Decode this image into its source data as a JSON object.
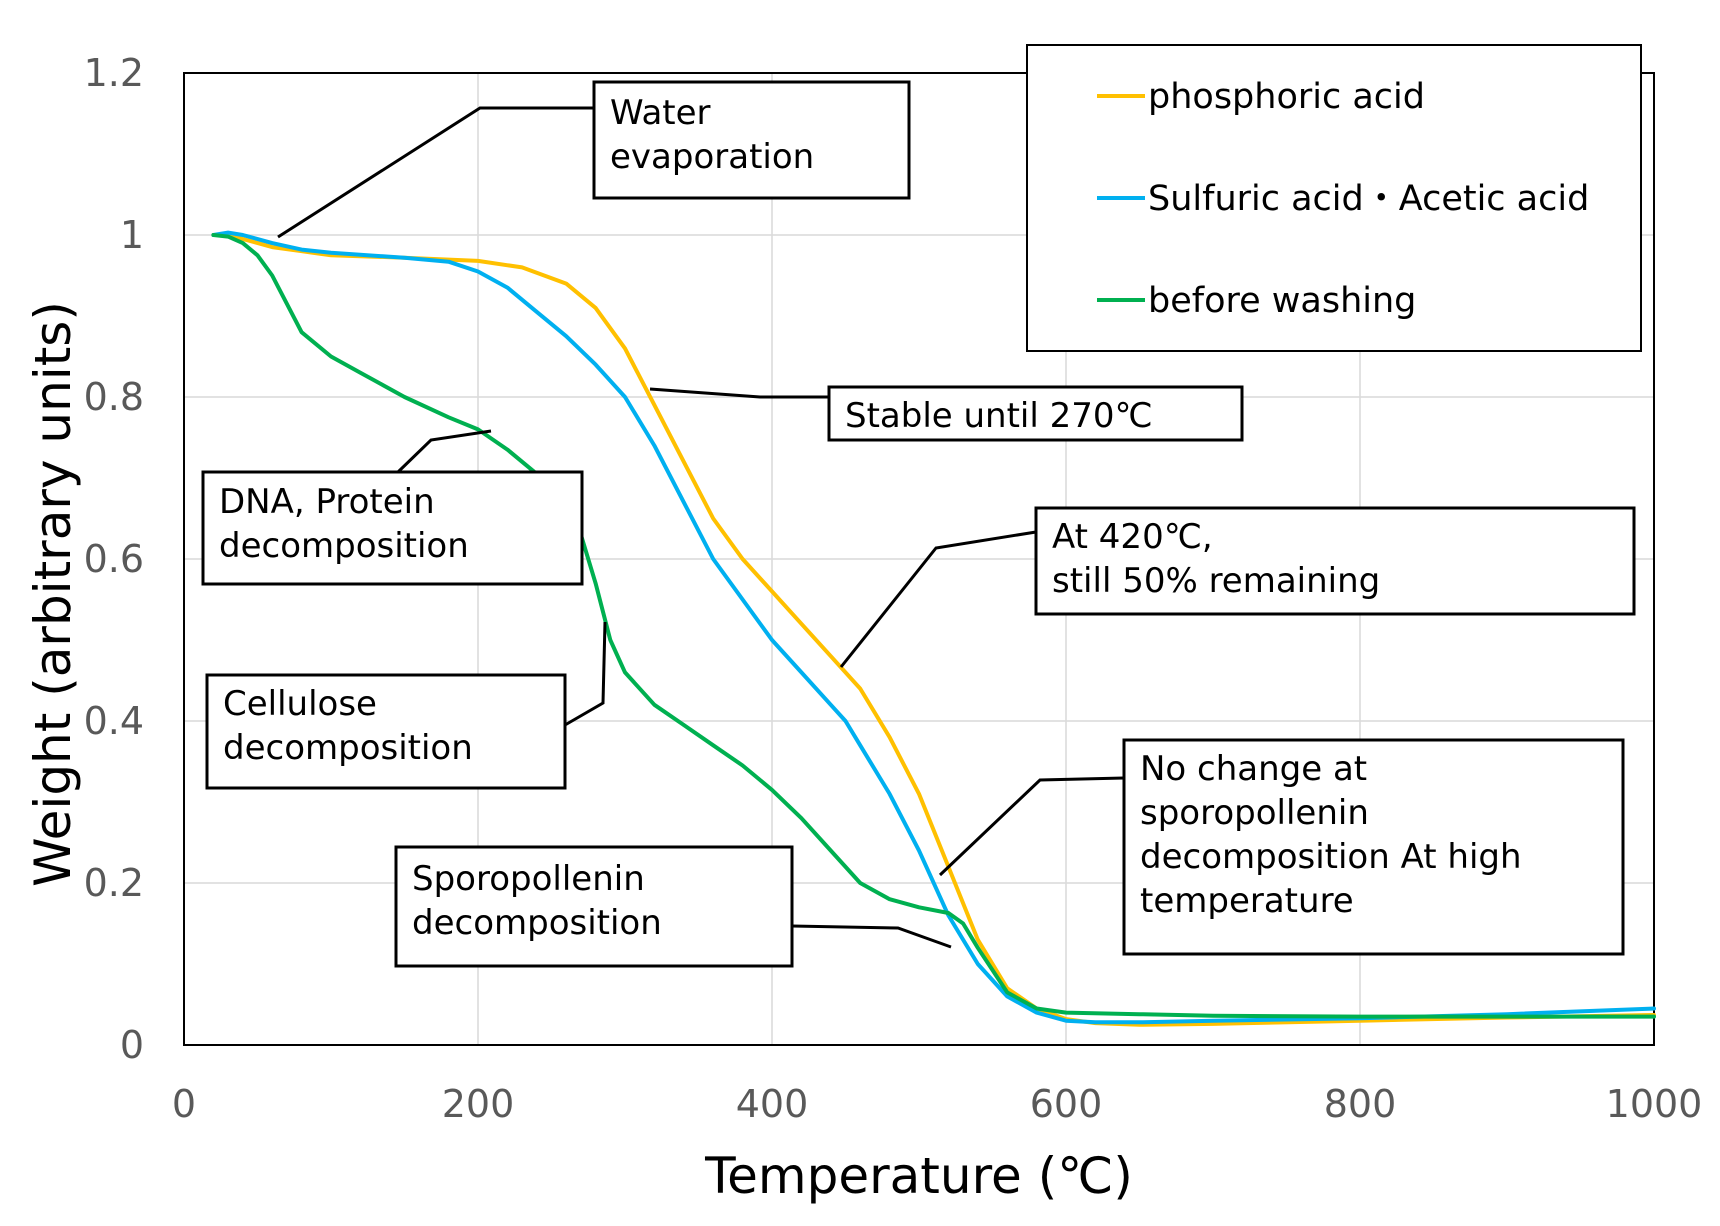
{
  "chart_data": {
    "type": "line",
    "title": "",
    "xlabel": "Temperature (℃)",
    "ylabel": "Weight (arbitrary units)",
    "xlim": [
      0,
      1000
    ],
    "ylim": [
      0,
      1.2
    ],
    "xticks": [
      "0",
      "200",
      "400",
      "600",
      "800",
      "1000"
    ],
    "yticks": [
      "0",
      "0.2",
      "0.4",
      "0.6",
      "0.8",
      "1",
      "1.2"
    ],
    "grid": true,
    "legend_position": "top-right",
    "series": [
      {
        "name": "phosphoric acid",
        "color": "#FFC000",
        "x": [
          20,
          30,
          40,
          60,
          80,
          100,
          150,
          200,
          230,
          260,
          280,
          300,
          320,
          340,
          360,
          380,
          400,
          420,
          440,
          460,
          480,
          500,
          520,
          540,
          560,
          580,
          600,
          620,
          650,
          700,
          800,
          900,
          1000
        ],
        "y": [
          1.0,
          1.0,
          0.995,
          0.985,
          0.98,
          0.975,
          0.972,
          0.968,
          0.96,
          0.94,
          0.91,
          0.86,
          0.79,
          0.72,
          0.65,
          0.6,
          0.56,
          0.52,
          0.48,
          0.44,
          0.38,
          0.31,
          0.22,
          0.13,
          0.07,
          0.045,
          0.032,
          0.027,
          0.025,
          0.026,
          0.03,
          0.034,
          0.037
        ]
      },
      {
        "name": "Sulfuric acid・Acetic acid",
        "color": "#00B0F0",
        "x": [
          20,
          30,
          40,
          60,
          80,
          100,
          150,
          180,
          200,
          220,
          240,
          260,
          280,
          300,
          320,
          340,
          360,
          380,
          400,
          420,
          440,
          450,
          460,
          480,
          500,
          520,
          540,
          560,
          580,
          600,
          620,
          650,
          700,
          800,
          900,
          1000
        ],
        "y": [
          1.0,
          1.003,
          1.0,
          0.99,
          0.982,
          0.978,
          0.972,
          0.967,
          0.955,
          0.935,
          0.905,
          0.875,
          0.84,
          0.8,
          0.74,
          0.67,
          0.6,
          0.55,
          0.5,
          0.46,
          0.42,
          0.4,
          0.37,
          0.31,
          0.24,
          0.16,
          0.1,
          0.06,
          0.04,
          0.03,
          0.028,
          0.028,
          0.03,
          0.033,
          0.038,
          0.045
        ]
      },
      {
        "name": "before washing",
        "color": "#00B050",
        "x": [
          20,
          30,
          40,
          50,
          60,
          80,
          100,
          120,
          150,
          180,
          200,
          220,
          240,
          250,
          260,
          270,
          280,
          290,
          300,
          320,
          340,
          360,
          380,
          400,
          420,
          440,
          460,
          480,
          500,
          520,
          530,
          540,
          560,
          580,
          600,
          650,
          700,
          800,
          900,
          1000
        ],
        "y": [
          1.0,
          0.998,
          0.99,
          0.975,
          0.95,
          0.88,
          0.85,
          0.83,
          0.8,
          0.775,
          0.76,
          0.735,
          0.705,
          0.69,
          0.67,
          0.63,
          0.57,
          0.5,
          0.46,
          0.42,
          0.395,
          0.37,
          0.345,
          0.315,
          0.28,
          0.24,
          0.2,
          0.18,
          0.17,
          0.163,
          0.15,
          0.12,
          0.065,
          0.045,
          0.04,
          0.038,
          0.036,
          0.035,
          0.035,
          0.035
        ]
      }
    ],
    "annotations": [
      {
        "lines": [
          "Water",
          "evaporation"
        ]
      },
      {
        "lines": [
          "Stable until 270℃"
        ]
      },
      {
        "lines": [
          "DNA, Protein",
          "decomposition"
        ]
      },
      {
        "lines": [
          "At 420℃,",
          "still 50% remaining"
        ]
      },
      {
        "lines": [
          "Cellulose",
          "decomposition"
        ]
      },
      {
        "lines": [
          "No change at",
          "sporopollenin",
          "decomposition At high",
          "temperature"
        ]
      },
      {
        "lines": [
          "Sporopollenin",
          "decomposition"
        ]
      }
    ]
  }
}
